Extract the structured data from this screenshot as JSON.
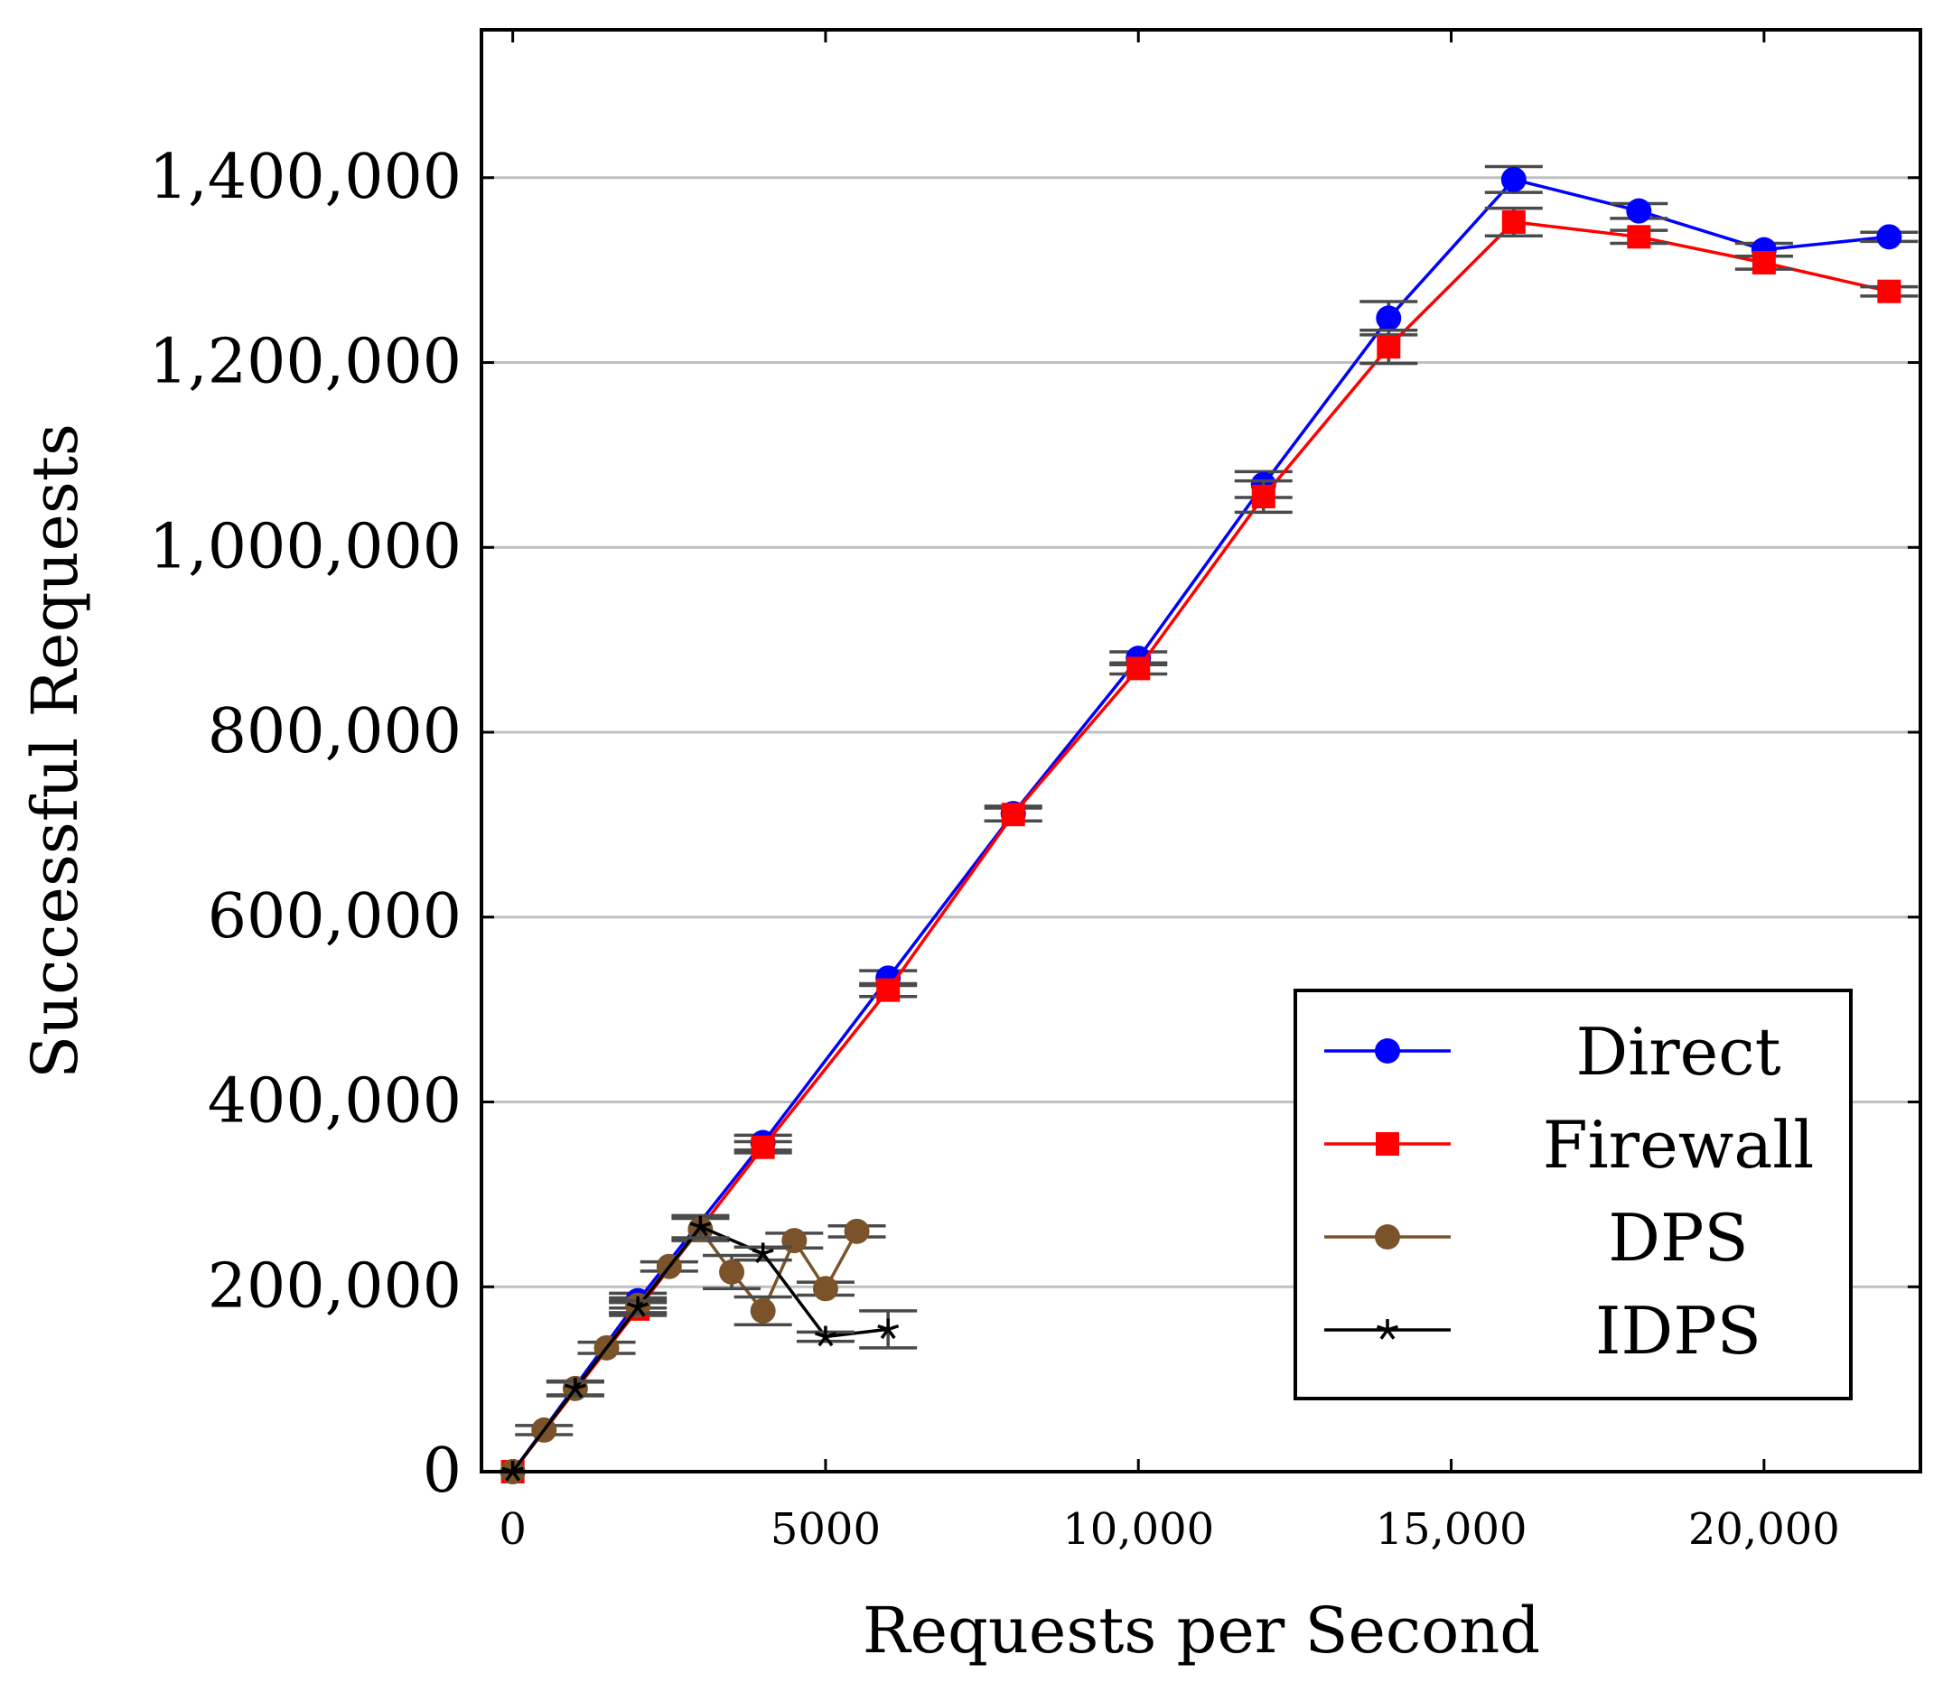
{
  "chart_data": {
    "type": "line",
    "title": "",
    "xlabel": "Requests per Second",
    "ylabel": "Successful Requests",
    "xlim": [
      -500,
      22500
    ],
    "ylim": [
      0,
      1560000
    ],
    "xticks": [
      0,
      5000,
      10000,
      15000,
      20000
    ],
    "xtick_labels": [
      "0",
      "5000",
      "10,000",
      "15,000",
      "20,000"
    ],
    "yticks": [
      0,
      200000,
      400000,
      600000,
      800000,
      1000000,
      1200000,
      1400000
    ],
    "ytick_labels": [
      "0",
      "200,000",
      "400,000",
      "600,000",
      "800,000",
      "1,000,000",
      "1,200,000",
      "1,400,000"
    ],
    "grid": "horizontal",
    "legend_position": "bottom-right",
    "series": [
      {
        "name": "Direct",
        "color": "#0000ff",
        "marker": "circle",
        "x": [
          0,
          2000,
          4000,
          6000,
          8000,
          10000,
          12000,
          14000,
          16000,
          18000,
          20000,
          22000
        ],
        "y": [
          0,
          185000,
          356000,
          534000,
          712000,
          880000,
          1068000,
          1248000,
          1398000,
          1364000,
          1322000,
          1336000
        ],
        "err": [
          0,
          8000,
          8000,
          8000,
          8000,
          7000,
          14000,
          18000,
          14000,
          8000,
          7000,
          5000
        ]
      },
      {
        "name": "Firewall",
        "color": "#ff0000",
        "marker": "square",
        "x": [
          0,
          2000,
          4000,
          6000,
          8000,
          10000,
          12000,
          14000,
          16000,
          18000,
          20000,
          22000
        ],
        "y": [
          0,
          176000,
          351000,
          521000,
          711000,
          869000,
          1055000,
          1217000,
          1352000,
          1336000,
          1308000,
          1277000
        ],
        "err": [
          0,
          7000,
          6000,
          7000,
          7000,
          6000,
          17000,
          18000,
          15000,
          7000,
          7000,
          5000
        ]
      },
      {
        "name": "DPS",
        "color": "#7b532a",
        "marker": "circle",
        "x": [
          0,
          500,
          1000,
          1500,
          2000,
          2500,
          3000,
          3500,
          4000,
          4500,
          5000,
          5500
        ],
        "y": [
          0,
          45000,
          90000,
          134000,
          180000,
          222000,
          262000,
          216000,
          174000,
          250000,
          198000,
          260000
        ],
        "err": [
          0,
          5000,
          7000,
          6000,
          8000,
          5000,
          12000,
          18000,
          15000,
          8000,
          7000,
          6000
        ]
      },
      {
        "name": "IDPS",
        "color": "#000000",
        "marker": "star",
        "x": [
          0,
          1000,
          2000,
          3000,
          4000,
          5000,
          6000
        ],
        "y": [
          0,
          90000,
          178000,
          265000,
          236000,
          146000,
          154000
        ],
        "err": [
          0,
          8000,
          7000,
          12000,
          7000,
          5000,
          20000
        ]
      }
    ]
  }
}
